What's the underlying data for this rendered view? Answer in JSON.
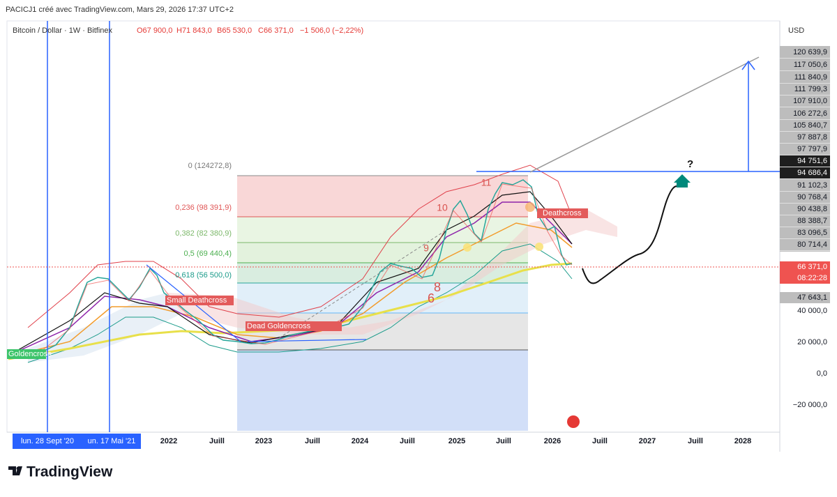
{
  "header": {
    "title": "PACICJ1 créé avec TradingView.com, Mars 29, 2026 17:37 UTC+2"
  },
  "symbol": {
    "name": "Bitcoin / Dollar · 1W · Bitfinex",
    "open": "O67 900,0",
    "high": "H71 843,0",
    "low": "B65 530,0",
    "close": "C66 371,0",
    "change": "−1 506,0 (−2,22%)"
  },
  "price_axis": {
    "currency": "USD",
    "labels": [
      "120 639,9",
      "117 050,6",
      "111 840,9",
      "111 799,3",
      "107 910,0",
      "106 272,6",
      "105 840,7",
      "97 887,8",
      "97 797,9",
      "94 751,6",
      "94 686,4",
      "91 102,3",
      "90 768,4",
      "90 438,8",
      "88 388,7",
      "83 096,5",
      "80 714,4",
      "47 643,1",
      "40 000,0",
      "20 000,0",
      "0,0",
      "−20 000,0"
    ],
    "current": "66 371,0",
    "countdown": "08:22:28"
  },
  "time_axis": {
    "labels": [
      "lun. 28 Sept '20",
      "un. 17 Mai '21",
      "2022",
      "Juill",
      "2023",
      "Juill",
      "2024",
      "Juill",
      "2025",
      "Juill",
      "2026",
      "Juill",
      "2027",
      "Juill",
      "2028"
    ]
  },
  "fib": [
    "0 (124272,8)",
    "0,236 (98 391,9)",
    "0,382 (82 380,9)",
    "0,5 (69 440,4)",
    "0,618 (56 500,0)"
  ],
  "annotations": {
    "question": "?",
    "counts": [
      "11",
      "10",
      "9",
      "8",
      "6"
    ],
    "goldencross": "Goldencross",
    "small_deathcross": "Small Deathcross",
    "dead_goldencross": "Dead Goldencross",
    "deathcross": "Deathcross"
  },
  "footer": {
    "brand": "TradingView"
  }
}
